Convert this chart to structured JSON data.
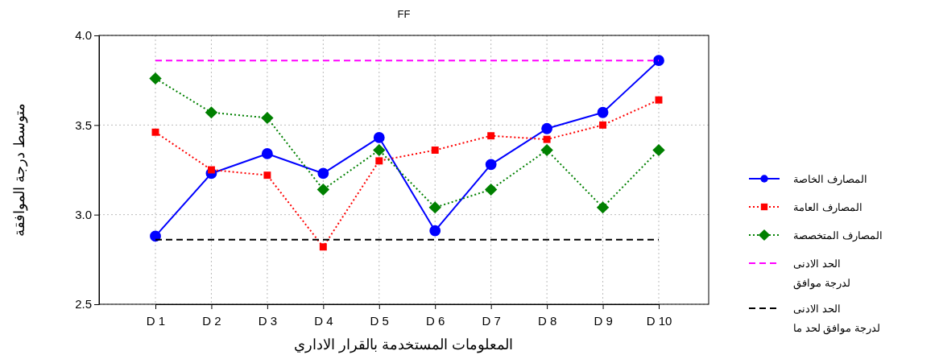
{
  "chart_data": {
    "type": "line",
    "title": "FF",
    "xlabel": "المعلومات المستخدمة بالقرار الاداري",
    "ylabel": "متوسط درجة الموافقة",
    "categories": [
      "D 1",
      "D 2",
      "D 3",
      "D 4",
      "D 5",
      "D 6",
      "D 7",
      "D 8",
      "D 9",
      "D 10"
    ],
    "ylim": [
      2.5,
      4.0
    ],
    "yticks": [
      {
        "value": 2.5,
        "label": "2.5"
      },
      {
        "value": 3,
        "label": "3.0"
      },
      {
        "value": 3.5,
        "label": "3.5"
      },
      {
        "value": 4,
        "label": "4.0"
      }
    ],
    "grid": true,
    "legend": "right",
    "series": [
      {
        "name": "المصارف الخاصة",
        "color": "#0000ff",
        "marker": "circle",
        "line_style": "solid",
        "values": [
          2.88,
          3.23,
          3.34,
          3.23,
          3.43,
          2.91,
          3.28,
          3.48,
          3.57,
          3.86
        ]
      },
      {
        "name": "المصارف العامة",
        "color": "#ff0000",
        "marker": "square",
        "line_style": "dotted",
        "values": [
          3.46,
          3.25,
          3.22,
          2.82,
          3.3,
          3.36,
          3.44,
          3.42,
          3.5,
          3.64
        ]
      },
      {
        "name": "المصارف المتخصصة",
        "color": "#008000",
        "marker": "diamond",
        "line_style": "dotted",
        "values": [
          3.76,
          3.57,
          3.54,
          3.14,
          3.36,
          3.04,
          3.14,
          3.36,
          3.04,
          3.36
        ]
      },
      {
        "name": "الحد الادنى لدرجة موافق",
        "color": "#ff00ff",
        "marker": "none",
        "line_style": "dashed",
        "values": [
          3.86,
          3.86,
          3.86,
          3.86,
          3.86,
          3.86,
          3.86,
          3.86,
          3.86,
          3.86
        ]
      },
      {
        "name": "الحد الادنى لدرجة موافق لحد ما",
        "color": "#000000",
        "marker": "none",
        "line_style": "dashed",
        "values": [
          2.86,
          2.86,
          2.86,
          2.86,
          2.86,
          2.86,
          2.86,
          2.86,
          2.86,
          2.86
        ]
      }
    ]
  }
}
